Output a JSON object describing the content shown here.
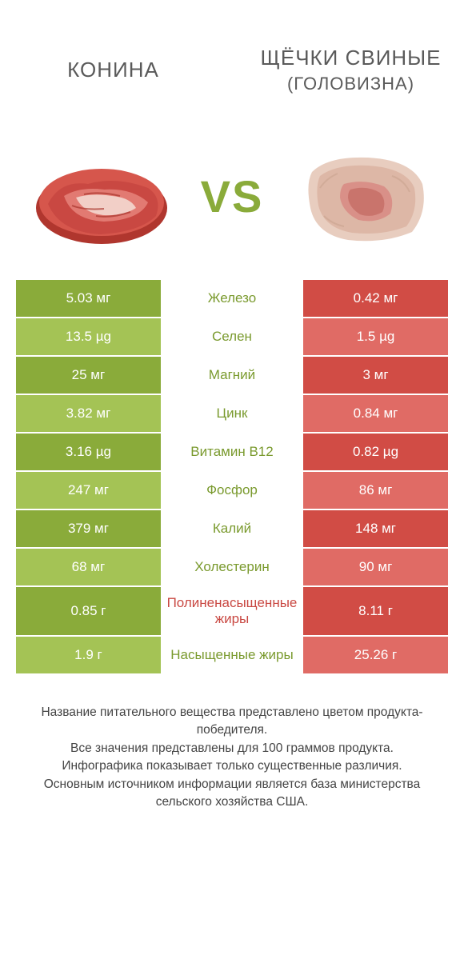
{
  "palette": {
    "green_dark": "#8aab3a",
    "green_light": "#a4c355",
    "red_dark": "#d14c45",
    "red_light": "#e06b65",
    "text_green": "#7a9a2e",
    "text_red": "#c94842",
    "vs_color": "#8aab3a",
    "title_color": "#5a5a5a"
  },
  "header": {
    "left_title": "КОНИНА",
    "right_title": "ЩЁЧКИ СВИНЫЕ",
    "right_sub": "(ГОЛОВИЗНА)",
    "vs": "VS"
  },
  "rows": [
    {
      "left": "5.03 мг",
      "mid": "Железо",
      "right": "0.42 мг",
      "winner": "left"
    },
    {
      "left": "13.5 µg",
      "mid": "Селен",
      "right": "1.5 µg",
      "winner": "left"
    },
    {
      "left": "25 мг",
      "mid": "Магний",
      "right": "3 мг",
      "winner": "left"
    },
    {
      "left": "3.82 мг",
      "mid": "Цинк",
      "right": "0.84 мг",
      "winner": "left"
    },
    {
      "left": "3.16 µg",
      "mid": "Витамин B12",
      "right": "0.82 µg",
      "winner": "left"
    },
    {
      "left": "247 мг",
      "mid": "Фосфор",
      "right": "86 мг",
      "winner": "left"
    },
    {
      "left": "379 мг",
      "mid": "Калий",
      "right": "148 мг",
      "winner": "left"
    },
    {
      "left": "68 мг",
      "mid": "Холестерин",
      "right": "90 мг",
      "winner": "left"
    },
    {
      "left": "0.85 г",
      "mid": "Полиненасыщенные жиры",
      "right": "8.11 г",
      "winner": "right"
    },
    {
      "left": "1.9 г",
      "mid": "Насыщенные жиры",
      "right": "25.26 г",
      "winner": "left"
    }
  ],
  "footer": {
    "line1": "Название питательного вещества представлено цветом продукта-победителя.",
    "line2": "Все значения представлены для 100 граммов продукта.",
    "line3": "Инфографика показывает только существенные различия.",
    "line4": "Основным источником информации является база министерства сельского хозяйства США."
  }
}
